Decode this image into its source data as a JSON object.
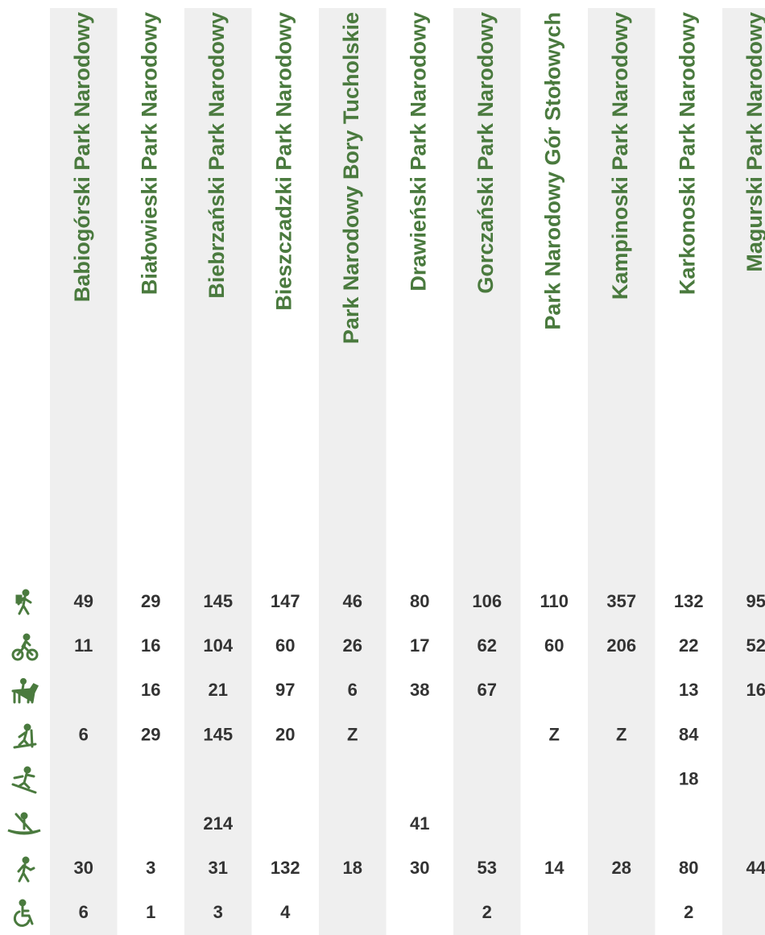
{
  "columns": [
    "Babiogórski Park Narodowy",
    "Białowieski Park Narodowy",
    "Biebrzański Park Narodowy",
    "Bieszczadzki Park Narodowy",
    "Park Narodowy Bory Tucholskie",
    "Drawieński Park Narodowy",
    "Gorczański Park Narodowy",
    "Park Narodowy Gór Stołowych",
    "Kampinoski Park Narodowy",
    "Karkonoski Park Narodowy",
    "Magurski Park Narodowy"
  ],
  "rows": [
    [
      49,
      29,
      145,
      147,
      46,
      80,
      106,
      110,
      357,
      132,
      95
    ],
    [
      11,
      16,
      104,
      60,
      26,
      17,
      62,
      60,
      206,
      22,
      52
    ],
    [
      null,
      16,
      21,
      97,
      6,
      38,
      67,
      null,
      null,
      13,
      16
    ],
    [
      6,
      29,
      145,
      20,
      "Z",
      null,
      null,
      "Z",
      "Z",
      84,
      null
    ],
    [
      null,
      null,
      null,
      null,
      null,
      null,
      null,
      null,
      null,
      18,
      null
    ],
    [
      null,
      null,
      214,
      null,
      null,
      41,
      null,
      null,
      null,
      null,
      null
    ],
    [
      30,
      3,
      31,
      132,
      18,
      30,
      53,
      14,
      28,
      80,
      44
    ],
    [
      6,
      1,
      3,
      4,
      null,
      null,
      2,
      null,
      null,
      2,
      null
    ]
  ]
}
